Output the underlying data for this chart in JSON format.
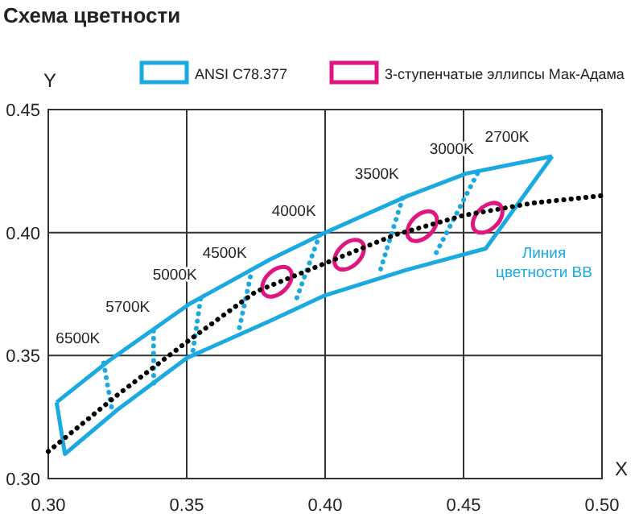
{
  "chart_data": {
    "type": "line",
    "title": "Схема цветности",
    "xlabel": "X",
    "ylabel": "Y",
    "xlim": [
      0.3,
      0.5
    ],
    "xticks": [
      {
        "value": 0.3,
        "label": "0.30"
      },
      {
        "value": 0.35,
        "label": "0.35"
      },
      {
        "value": 0.4,
        "label": "0.40"
      },
      {
        "value": 0.45,
        "label": "0.45"
      },
      {
        "value": 0.5,
        "label": "0.50"
      }
    ],
    "ylim": [
      0.3,
      0.45
    ],
    "yticks": [
      {
        "value": 0.3,
        "label": "0.30"
      },
      {
        "value": 0.35,
        "label": "0.35"
      },
      {
        "value": 0.4,
        "label": "0.40"
      },
      {
        "value": 0.45,
        "label": "0.45"
      }
    ],
    "grid": true,
    "legend": "top",
    "line_style": "solid",
    "series": [
      {
        "name": "ANSI C78.377",
        "color": "#1aa9e0",
        "x": [
          0.303,
          0.322,
          0.351,
          0.38,
          0.4,
          0.43,
          0.451,
          0.482
        ],
        "values": [
          0.331,
          0.348,
          0.371,
          0.389,
          0.4,
          0.415,
          0.424,
          0.431
        ]
      },
      {
        "color": "#1aa9e0",
        "x": [
          0.303,
          0.306,
          0.325,
          0.35,
          0.38,
          0.4,
          0.43,
          0.458,
          0.482
        ],
        "values": [
          0.331,
          0.31,
          0.328,
          0.349,
          0.364,
          0.3745,
          0.385,
          0.3935,
          0.431
        ]
      },
      {
        "name": "3-ступенчатые эллипсы Мак-Адама",
        "type": "scatter",
        "marker": "circle",
        "color": "#e0157f",
        "x": [
          0.3826,
          0.4087,
          0.435,
          0.4587
        ],
        "values": [
          0.38,
          0.391,
          0.4026,
          0.406
        ]
      },
      {
        "line_style": "dotted",
        "color": "#1aa9e0",
        "x": [
          0.32,
          0.323
        ],
        "values": [
          0.347,
          0.328
        ]
      },
      {
        "line_style": "dotted",
        "color": "#1aa9e0",
        "x": [
          0.338,
          0.3381
        ],
        "values": [
          0.36,
          0.337
        ]
      },
      {
        "line_style": "dotted",
        "color": "#1aa9e0",
        "x": [
          0.355,
          0.352
        ],
        "values": [
          0.373,
          0.35
        ]
      },
      {
        "line_style": "dotted",
        "color": "#1aa9e0",
        "x": [
          0.373,
          0.369
        ],
        "values": [
          0.382,
          0.361
        ]
      },
      {
        "line_style": "dotted",
        "color": "#1aa9e0",
        "x": [
          0.398,
          0.389
        ],
        "values": [
          0.399,
          0.371
        ]
      },
      {
        "line_style": "dotted",
        "color": "#1aa9e0",
        "x": [
          0.428,
          0.42
        ],
        "values": [
          0.414,
          0.385
        ]
      },
      {
        "line_style": "dotted",
        "color": "#1aa9e0",
        "x": [
          0.455,
          0.44
        ],
        "values": [
          0.424,
          0.3915
        ]
      },
      {
        "line_style": "dotted",
        "color": "#000000",
        "x": [
          0.3,
          0.325,
          0.35,
          0.375,
          0.4,
          0.425,
          0.45,
          0.475,
          0.5
        ],
        "values": [
          0.311,
          0.334,
          0.3555,
          0.376,
          0.3875,
          0.399,
          0.407,
          0.412,
          0.415
        ]
      }
    ],
    "annotations": [
      "6500K",
      "5700K",
      "5000K",
      "4500K",
      "4000K",
      "3500K",
      "3000K",
      "2700K",
      "Линия цветности ВВ"
    ]
  }
}
